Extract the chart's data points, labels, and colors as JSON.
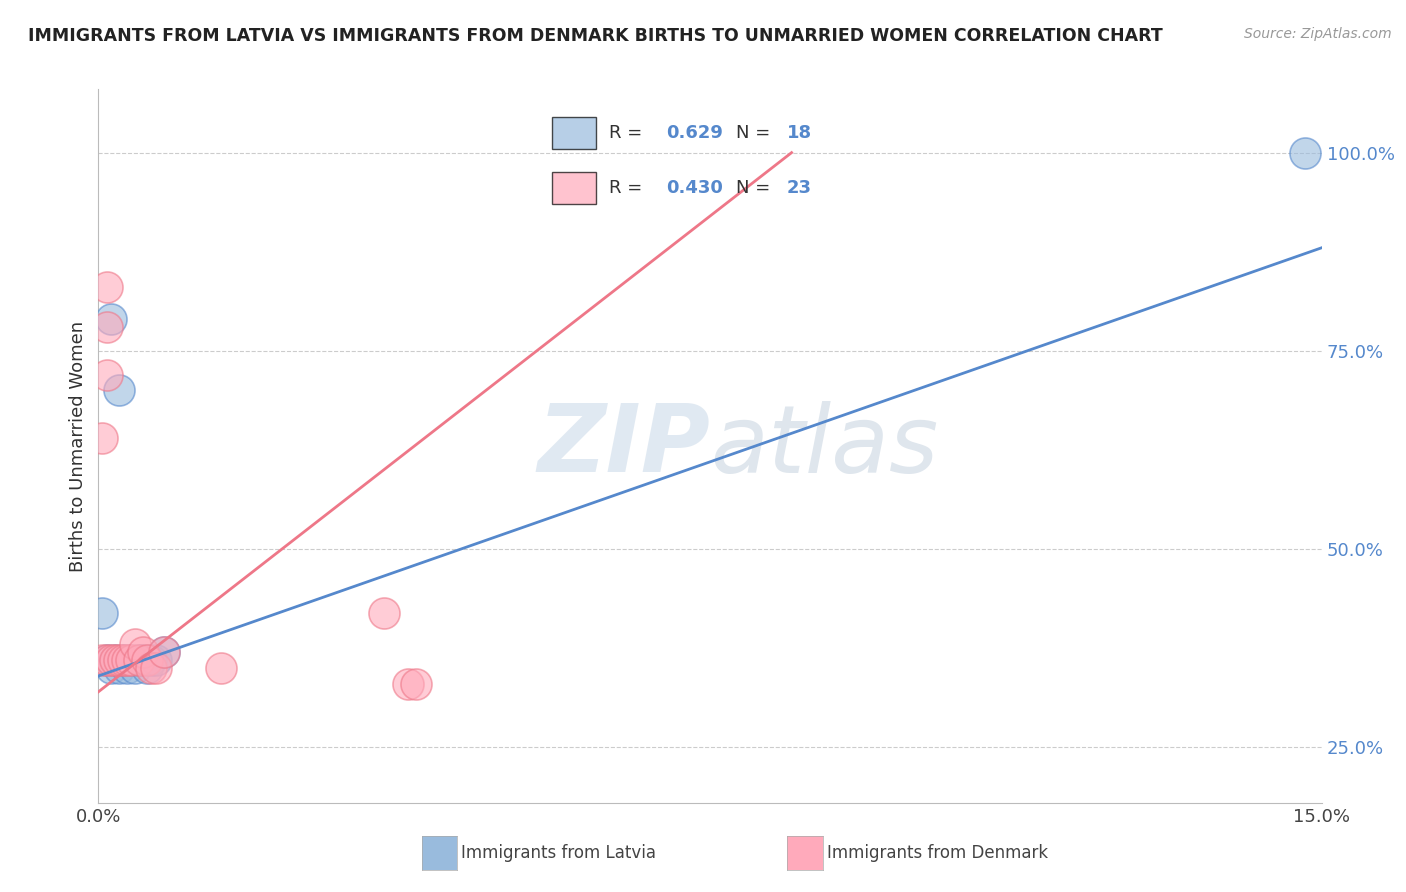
{
  "title": "IMMIGRANTS FROM LATVIA VS IMMIGRANTS FROM DENMARK BIRTHS TO UNMARRIED WOMEN CORRELATION CHART",
  "source": "Source: ZipAtlas.com",
  "ylabel": "Births to Unmarried Women",
  "xlim": [
    0,
    15
  ],
  "ylim": [
    18,
    108
  ],
  "yticks": [
    25.0,
    50.0,
    75.0,
    100.0
  ],
  "ytick_labels": [
    "25.0%",
    "50.0%",
    "75.0%",
    "100.0%"
  ],
  "xtick_positions": [
    0,
    3.75,
    7.5,
    11.25,
    15
  ],
  "xtick_labels": [
    "0.0%",
    "",
    "",
    "",
    "15.0%"
  ],
  "legend_blue_label": "Immigrants from Latvia",
  "legend_pink_label": "Immigrants from Denmark",
  "R_blue": "0.629",
  "N_blue": "18",
  "R_pink": "0.430",
  "N_pink": "23",
  "blue_color": "#99BBDD",
  "pink_color": "#FFAABB",
  "blue_line_color": "#5588CC",
  "pink_line_color": "#EE7788",
  "watermark_zip": "ZIP",
  "watermark_atlas": "atlas",
  "background_color": "#FFFFFF",
  "grid_color": "#CCCCCC",
  "blue_scatter": [
    [
      0.05,
      42
    ],
    [
      0.1,
      36
    ],
    [
      0.15,
      35
    ],
    [
      0.2,
      36
    ],
    [
      0.25,
      35
    ],
    [
      0.3,
      36
    ],
    [
      0.35,
      35
    ],
    [
      0.4,
      36
    ],
    [
      0.45,
      35
    ],
    [
      0.5,
      36
    ],
    [
      0.55,
      36
    ],
    [
      0.6,
      35
    ],
    [
      0.65,
      36
    ],
    [
      0.7,
      36
    ],
    [
      0.8,
      37
    ],
    [
      0.15,
      79
    ],
    [
      0.25,
      70
    ],
    [
      14.8,
      100
    ]
  ],
  "pink_scatter": [
    [
      0.05,
      36
    ],
    [
      0.1,
      36
    ],
    [
      0.15,
      36
    ],
    [
      0.2,
      36
    ],
    [
      0.25,
      36
    ],
    [
      0.3,
      36
    ],
    [
      0.35,
      36
    ],
    [
      0.4,
      36
    ],
    [
      0.45,
      38
    ],
    [
      0.5,
      36
    ],
    [
      0.55,
      37
    ],
    [
      0.6,
      36
    ],
    [
      0.65,
      35
    ],
    [
      0.7,
      35
    ],
    [
      0.8,
      37
    ],
    [
      0.1,
      78
    ],
    [
      0.1,
      72
    ],
    [
      0.05,
      64
    ],
    [
      0.1,
      83
    ],
    [
      3.5,
      42
    ],
    [
      1.5,
      35
    ],
    [
      3.8,
      33
    ],
    [
      3.9,
      33
    ]
  ],
  "blue_line_x": [
    0,
    15
  ],
  "blue_line_y": [
    34,
    88
  ],
  "pink_line_x": [
    0,
    8.5
  ],
  "pink_line_y": [
    32,
    100
  ],
  "title_fontsize": 12.5,
  "source_fontsize": 10,
  "tick_fontsize": 13,
  "ylabel_fontsize": 13
}
